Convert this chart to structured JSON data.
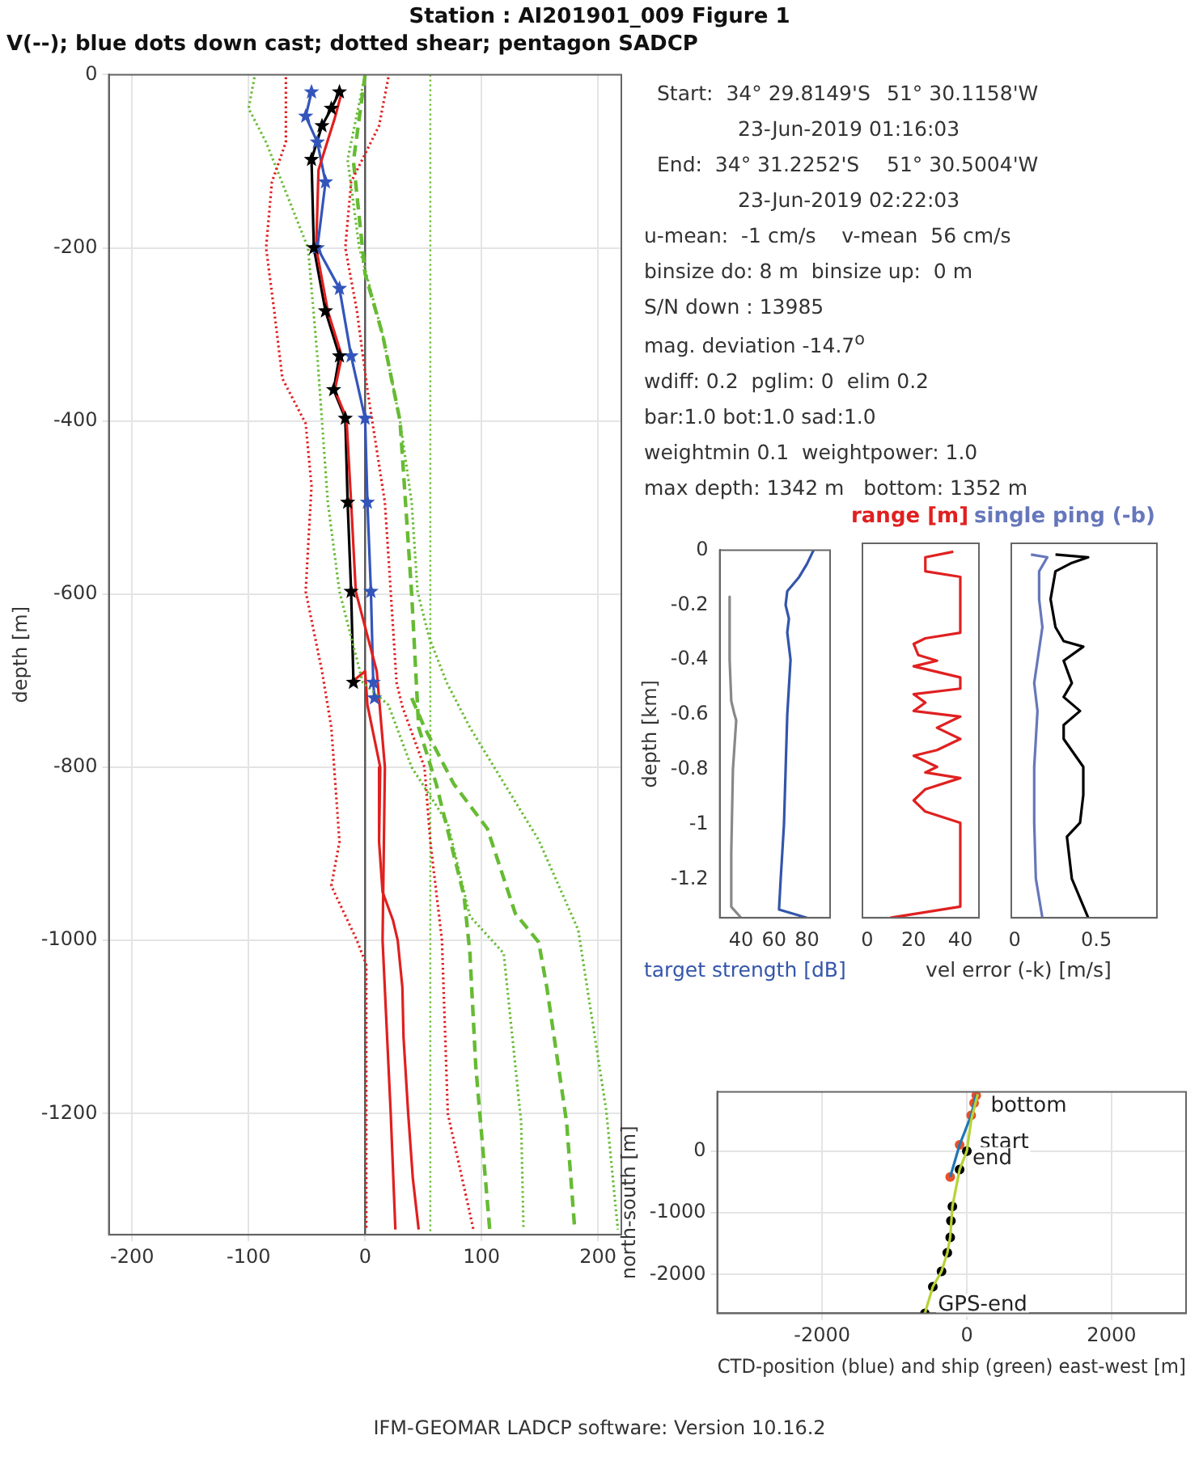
{
  "chart_data": [
    {
      "type": "line",
      "title": "Station : AI201901_009  Figure 1",
      "subtitle": "V(--); blue dots down cast; dotted shear; pentagon SADCP",
      "ylabel": "depth [m]",
      "xlim": [
        -220,
        220
      ],
      "xticks": [
        -200,
        -100,
        0,
        100,
        200
      ],
      "ylim": [
        -1340,
        0
      ],
      "yticks": [
        -1200,
        -1000,
        -800,
        -600,
        -400,
        -200,
        0
      ],
      "grid": true,
      "ref_lines": [
        {
          "axis": "x",
          "value": 0,
          "color": "#555555",
          "line_style": "solid"
        },
        {
          "axis": "x",
          "value": 56,
          "color": "#66bb33",
          "line_style": "dotted"
        }
      ],
      "annotations": [
        "IFM-GEOMAR LADCP software: Version 10.16.2"
      ],
      "series": [
        {
          "color": "#e02020",
          "line_style": "dotted",
          "x": [
            -68,
            -68,
            -80,
            -85,
            -78,
            -71,
            -51,
            -46,
            -51,
            -37,
            -29,
            -22,
            -29,
            -7,
            1,
            1
          ],
          "values": [
            -3,
            -78,
            -124,
            -200,
            -273,
            -351,
            -403,
            -475,
            -597,
            -689,
            -754,
            -886,
            -937,
            -1000,
            -1028,
            -1334
          ]
        },
        {
          "color": "#e02020",
          "line_style": "dotted",
          "x": [
            20,
            12,
            -12,
            -17,
            -7,
            2,
            17,
            22,
            27,
            32,
            51,
            56,
            66,
            71,
            93
          ],
          "values": [
            -3,
            -59,
            -124,
            -200,
            -273,
            -364,
            -494,
            -597,
            -702,
            -730,
            -800,
            -886,
            -1000,
            -1200,
            -1334
          ]
        },
        {
          "color": "#66bb33",
          "line_style": "dotted",
          "x": [
            -95,
            -100,
            -85,
            -49,
            -41,
            -32,
            -22,
            -2,
            20,
            40,
            71,
            90,
            119,
            134,
            136
          ],
          "values": [
            -3,
            -39,
            -78,
            -200,
            -325,
            -494,
            -597,
            -702,
            -728,
            -800,
            -865,
            -972,
            -1015,
            -1210,
            -1334
          ]
        },
        {
          "color": "#66bb33",
          "line_style": "dotted",
          "x": [
            0,
            -15,
            -5,
            15,
            30,
            40,
            45,
            55,
            70,
            90,
            149,
            183,
            207,
            217
          ],
          "values": [
            0,
            -98,
            -200,
            -300,
            -400,
            -494,
            -597,
            -650,
            -702,
            -754,
            -884,
            -988,
            -1196,
            -1334
          ]
        },
        {
          "color": "#66bb33",
          "line_style": "dashed",
          "x": [
            0,
            -10,
            0,
            15,
            30,
            35,
            40,
            46,
            61,
            85,
            90,
            95,
            107
          ],
          "values": [
            0,
            -100,
            -230,
            -300,
            -400,
            -500,
            -600,
            -754,
            -819,
            -949,
            -1015,
            -1145,
            -1334
          ]
        },
        {
          "color": "#66bb33",
          "line_style": "dashed",
          "x": [
            40,
            51,
            76,
            105,
            129,
            149,
            156,
            173,
            180
          ],
          "values": [
            -720,
            -754,
            -819,
            -871,
            -969,
            -1002,
            -1054,
            -1210,
            -1334
          ]
        },
        {
          "color": "#e02020",
          "line_style": "solid",
          "x": [
            -20,
            -26,
            -33,
            -40,
            -42,
            -32,
            -20,
            -26,
            -16,
            -12,
            -8,
            10,
            17,
            15,
            22,
            26
          ],
          "values": [
            -20,
            -50,
            -80,
            -110,
            -200,
            -273,
            -325,
            -364,
            -397,
            -494,
            -597,
            -689,
            -800,
            -1000,
            -1200,
            -1334
          ]
        },
        {
          "color": "#e02020",
          "line_style": "solid",
          "x": [
            -10,
            0,
            2,
            13,
            12,
            15,
            24,
            28,
            32,
            33,
            37,
            41,
            46
          ],
          "values": [
            -700,
            -689,
            -728,
            -800,
            -886,
            -944,
            -977,
            -1000,
            -1054,
            -1112,
            -1200,
            -1275,
            -1334
          ]
        },
        {
          "color": "#3355bb",
          "line_style": "solid",
          "marker": "star",
          "x": [
            -46,
            -51,
            -41,
            -34,
            -41,
            -22,
            -12,
            0,
            2,
            5,
            7,
            8
          ],
          "values": [
            -20,
            -48,
            -78,
            -124,
            -200,
            -247,
            -325,
            -397,
            -494,
            -597,
            -702,
            -720
          ]
        },
        {
          "color": "#000000",
          "line_style": "solid",
          "marker": "star",
          "x": [
            -22,
            -29,
            -37,
            -46,
            -44,
            -34,
            -22,
            -27,
            -17,
            -15,
            -12,
            -10
          ],
          "values": [
            -20,
            -39,
            -59,
            -98,
            -200,
            -273,
            -325,
            -364,
            -397,
            -494,
            -597,
            -702
          ]
        }
      ]
    },
    {
      "type": "line",
      "xlabel": "target strength [dB]",
      "ylabel": "depth [km]",
      "xlim": [
        27,
        94
      ],
      "xticks": [
        40,
        60,
        80
      ],
      "ylim": [
        -1.34,
        0
      ],
      "yticks": [
        -1.2,
        -1,
        -0.8,
        -0.6,
        -0.4,
        -0.2,
        0
      ],
      "series": [
        {
          "color": "#888888",
          "x": [
            33,
            33,
            34,
            36,
            37,
            35,
            34,
            34,
            40
          ],
          "values": [
            -0.17,
            -0.4,
            -0.55,
            -0.6,
            -0.62,
            -0.8,
            -1.1,
            -1.3,
            -1.34
          ]
        },
        {
          "color": "#3355aa",
          "x": [
            84,
            80,
            75,
            68,
            67,
            69,
            68,
            70,
            69,
            68,
            67,
            66,
            65,
            64,
            63,
            80
          ],
          "values": [
            0,
            -0.05,
            -0.1,
            -0.15,
            -0.2,
            -0.25,
            -0.3,
            -0.4,
            -0.5,
            -0.6,
            -0.8,
            -1.0,
            -1.1,
            -1.2,
            -1.31,
            -1.34
          ]
        }
      ]
    },
    {
      "type": "line",
      "title": "range [m]",
      "xlim": [
        -2,
        48
      ],
      "xticks": [
        0,
        20,
        40
      ],
      "ylim": [
        -1.34,
        0
      ],
      "yticks": [
        -1.2,
        -1,
        -0.8,
        -0.6,
        -0.4,
        -0.2,
        0
      ],
      "tick_labels": "x",
      "series": [
        {
          "color": "#e02020",
          "x": [
            37,
            25,
            25,
            40,
            40,
            25,
            20,
            22,
            30,
            20,
            40,
            40,
            20,
            25,
            20,
            40,
            30,
            40,
            30,
            20,
            30,
            25,
            40,
            25,
            20,
            25,
            40,
            40,
            10
          ],
          "values": [
            -0.03,
            -0.05,
            -0.1,
            -0.12,
            -0.32,
            -0.34,
            -0.36,
            -0.4,
            -0.42,
            -0.44,
            -0.48,
            -0.52,
            -0.54,
            -0.57,
            -0.6,
            -0.62,
            -0.66,
            -0.7,
            -0.74,
            -0.76,
            -0.8,
            -0.82,
            -0.84,
            -0.88,
            -0.92,
            -0.96,
            -1.0,
            -1.3,
            -1.34
          ]
        }
      ]
    },
    {
      "type": "line",
      "title": "single ping (-b)",
      "xlabel": "vel error (-k) [m/s]",
      "xlim": [
        -0.02,
        0.87
      ],
      "xticks": [
        0,
        0.5
      ],
      "ylim": [
        -1.34,
        0
      ],
      "yticks": [
        -1.2,
        -1,
        -0.8,
        -0.6,
        -0.4,
        -0.2,
        0
      ],
      "tick_labels": "x",
      "series": [
        {
          "color": "#6677bb",
          "x": [
            0.1,
            0.2,
            0.15,
            0.15,
            0.17,
            0.12,
            0.14,
            0.12,
            0.12,
            0.13,
            0.17
          ],
          "values": [
            -0.04,
            -0.05,
            -0.1,
            -0.2,
            -0.3,
            -0.5,
            -0.6,
            -0.8,
            -1.0,
            -1.2,
            -1.34
          ]
        },
        {
          "color": "#000000",
          "x": [
            0.25,
            0.45,
            0.35,
            0.25,
            0.22,
            0.25,
            0.3,
            0.42,
            0.3,
            0.35,
            0.3,
            0.4,
            0.3,
            0.3,
            0.42,
            0.42,
            0.4,
            0.32,
            0.35,
            0.45
          ],
          "values": [
            -0.04,
            -0.05,
            -0.07,
            -0.1,
            -0.2,
            -0.3,
            -0.35,
            -0.37,
            -0.42,
            -0.5,
            -0.55,
            -0.6,
            -0.65,
            -0.7,
            -0.8,
            -0.9,
            -1.0,
            -1.05,
            -1.2,
            -1.34
          ]
        }
      ]
    },
    {
      "type": "line",
      "xlabel": "CTD-position (blue) and ship (green) east-west [m]",
      "ylabel": "north-south [m]",
      "xlim": [
        -3450,
        3030
      ],
      "xticks": [
        -2000,
        0,
        2000
      ],
      "ylim": [
        -2630,
        960
      ],
      "yticks": [
        -2000,
        -1000,
        0
      ],
      "grid": true,
      "annotations": [
        {
          "text": "bottom",
          "x": 150,
          "y": 600
        },
        {
          "text": "start",
          "x": 0,
          "y": 0
        },
        {
          "text": "end",
          "x": -100,
          "y": -250
        },
        {
          "text": "GPS-end",
          "x": -580,
          "y": -2630
        }
      ],
      "series": [
        {
          "color": "#b5d334",
          "x": [
            150,
            60,
            0,
            -100,
            -200,
            -230,
            -270,
            -350,
            -470,
            -580
          ],
          "values": [
            920,
            500,
            0,
            -300,
            -900,
            -1400,
            -1650,
            -1950,
            -2200,
            -2630
          ]
        },
        {
          "color": "#1f77b4",
          "x": [
            -230,
            -100,
            60,
            130
          ],
          "values": [
            -420,
            100,
            580,
            920
          ]
        },
        {
          "type": "scatter",
          "color": "#e8502a",
          "x": [
            -230,
            -100,
            60,
            100,
            130
          ],
          "values": [
            -420,
            100,
            580,
            780,
            900
          ]
        },
        {
          "type": "scatter",
          "color": "#000000",
          "x": [
            0,
            -100,
            -200,
            -220,
            -230,
            -270,
            -350,
            -470,
            -580
          ],
          "values": [
            0,
            -300,
            -900,
            -1130,
            -1400,
            -1650,
            -1950,
            -2200,
            -2630
          ]
        }
      ]
    },
    {
      "type": "other",
      "annotations": [
        "Start:  34° 29.8149'S",
        "51° 30.1158'W",
        "23-Jun-2019 01:16:03",
        "End:  34° 31.2252'S",
        "51° 30.5004'W",
        "23-Jun-2019 02:22:03",
        "u-mean:  -1 cm/s    v-mean  56 cm/s",
        "binsize do: 8 m  binsize up:  0 m",
        "S/N down : 13985",
        "mag. deviation -14.7$^{o}$",
        "wdiff: 0.2  pglim: 0  elim 0.2",
        "bar:1.0 bot:1.0 sad:1.0",
        "weightmin 0.1  weightpower: 1.0",
        "max depth: 1342 m   bottom: 1352 m"
      ]
    }
  ]
}
